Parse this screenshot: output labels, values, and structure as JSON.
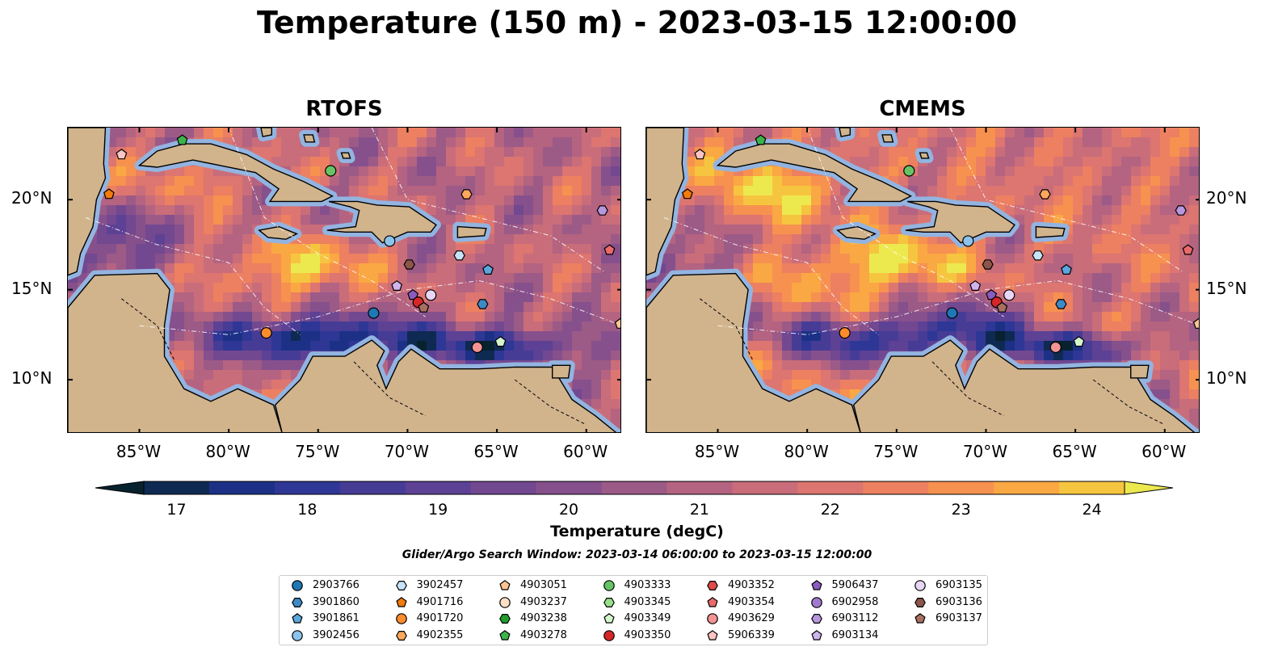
{
  "title": "Temperature (150 m) - 2023-03-15 12:00:00",
  "panels": [
    {
      "title": "RTOFS"
    },
    {
      "title": "CMEMS"
    }
  ],
  "map": {
    "lon_range": [
      -89,
      -58
    ],
    "lat_range": [
      7,
      24
    ],
    "lon_ticks": [
      {
        "label": "85°W",
        "lon": -85
      },
      {
        "label": "80°W",
        "lon": -80
      },
      {
        "label": "75°W",
        "lon": -75
      },
      {
        "label": "70°W",
        "lon": -70
      },
      {
        "label": "65°W",
        "lon": -65
      },
      {
        "label": "60°W",
        "lon": -60
      }
    ],
    "lat_ticks": [
      {
        "label": "20°N",
        "lat": 20
      },
      {
        "label": "15°N",
        "lat": 15
      },
      {
        "label": "10°N",
        "lat": 10
      }
    ],
    "colors": {
      "land": "#d1b48c",
      "shelf": "#93b4e0",
      "coast": "#000000"
    }
  },
  "colorbar": {
    "label": "Temperature (degC)",
    "range": [
      16.5,
      24.5
    ],
    "extend": "both",
    "ticks": [
      "17",
      "18",
      "19",
      "20",
      "21",
      "22",
      "23",
      "24"
    ],
    "colors": [
      "#07222e",
      "#0f2a52",
      "#1c3186",
      "#2e3796",
      "#463c96",
      "#5d4195",
      "#724890",
      "#86508c",
      "#9c5a87",
      "#b46381",
      "#c96d7a",
      "#dd7570",
      "#ec8060",
      "#f79150",
      "#faa843",
      "#f6c53f",
      "#ece94f"
    ]
  },
  "search_window": "Glider/Argo Search Window: 2023-03-14 06:00:00 to 2023-03-15 12:00:00",
  "legend": [
    {
      "id": "2903766",
      "marker": "circle",
      "color": "#1f77b4"
    },
    {
      "id": "3901860",
      "marker": "hexagon",
      "color": "#3d8ac7"
    },
    {
      "id": "3901861",
      "marker": "pentagon",
      "color": "#5aa6de"
    },
    {
      "id": "3902456",
      "marker": "circle",
      "color": "#8cc3ec"
    },
    {
      "id": "3902457",
      "marker": "hexagon",
      "color": "#c7e3f8"
    },
    {
      "id": "4901716",
      "marker": "pentagon",
      "color": "#f27b0c"
    },
    {
      "id": "4901720",
      "marker": "circle",
      "color": "#ff8c2c"
    },
    {
      "id": "4902355",
      "marker": "hexagon",
      "color": "#ffa75c"
    },
    {
      "id": "4903051",
      "marker": "pentagon",
      "color": "#ffc393"
    },
    {
      "id": "4903237",
      "marker": "circle",
      "color": "#ffe0c4"
    },
    {
      "id": "4903238",
      "marker": "hexagon",
      "color": "#1f9e2c"
    },
    {
      "id": "4903278",
      "marker": "pentagon",
      "color": "#3cb44b"
    },
    {
      "id": "4903333",
      "marker": "circle",
      "color": "#66c466"
    },
    {
      "id": "4903345",
      "marker": "hexagon",
      "color": "#98df8a"
    },
    {
      "id": "4903349",
      "marker": "pentagon",
      "color": "#d4f5cc"
    },
    {
      "id": "4903350",
      "marker": "circle",
      "color": "#d62728"
    },
    {
      "id": "4903352",
      "marker": "hexagon",
      "color": "#e04a4a"
    },
    {
      "id": "4903354",
      "marker": "pentagon",
      "color": "#ea6a6a"
    },
    {
      "id": "4903629",
      "marker": "circle",
      "color": "#f39393"
    },
    {
      "id": "5906339",
      "marker": "pentagon",
      "color": "#fcc4c4"
    },
    {
      "id": "5906437",
      "marker": "pentagon",
      "color": "#8a5cc0"
    },
    {
      "id": "6902958",
      "marker": "circle",
      "color": "#a07ad0"
    },
    {
      "id": "6903112",
      "marker": "hexagon",
      "color": "#b797de"
    },
    {
      "id": "6903134",
      "marker": "pentagon",
      "color": "#cfb5ec"
    },
    {
      "id": "6903135",
      "marker": "circle",
      "color": "#e7d6f6"
    },
    {
      "id": "6903136",
      "marker": "hexagon",
      "color": "#8c564b"
    },
    {
      "id": "6903137",
      "marker": "pentagon",
      "color": "#a87060"
    }
  ],
  "floats": [
    {
      "id": "4903278",
      "lon": -82.6,
      "lat": 23.3
    },
    {
      "id": "5906339",
      "lon": -86.0,
      "lat": 22.5
    },
    {
      "id": "4901716",
      "lon": -86.7,
      "lat": 20.3
    },
    {
      "id": "4903333",
      "lon": -74.3,
      "lat": 21.6
    },
    {
      "id": "4902355",
      "lon": -66.7,
      "lat": 20.3
    },
    {
      "id": "6903112",
      "lon": -59.1,
      "lat": 19.4
    },
    {
      "id": "4903354",
      "lon": -58.7,
      "lat": 17.2
    },
    {
      "id": "3902456",
      "lon": -71.0,
      "lat": 17.7
    },
    {
      "id": "3902457",
      "lon": -67.1,
      "lat": 16.9
    },
    {
      "id": "6903136",
      "lon": -69.9,
      "lat": 16.4
    },
    {
      "id": "3901861",
      "lon": -65.5,
      "lat": 16.1
    },
    {
      "id": "6903134",
      "lon": -70.6,
      "lat": 15.2
    },
    {
      "id": "5906437",
      "lon": -69.7,
      "lat": 14.7
    },
    {
      "id": "6903135",
      "lon": -68.7,
      "lat": 14.7
    },
    {
      "id": "4903350",
      "lon": -69.4,
      "lat": 14.3
    },
    {
      "id": "6903137",
      "lon": -69.1,
      "lat": 14.0
    },
    {
      "id": "3901860",
      "lon": -65.8,
      "lat": 14.2
    },
    {
      "id": "2903766",
      "lon": -71.9,
      "lat": 13.7
    },
    {
      "id": "4901720",
      "lon": -77.9,
      "lat": 12.6
    },
    {
      "id": "4903629",
      "lon": -66.1,
      "lat": 11.8
    },
    {
      "id": "4903349",
      "lon": -64.8,
      "lat": 12.1
    },
    {
      "id": "4903051",
      "lon": -58.1,
      "lat": 13.1
    }
  ],
  "land": [
    {
      "name": "central-america",
      "points": [
        [
          -89,
          14
        ],
        [
          -87.5,
          15.8
        ],
        [
          -84,
          15.9
        ],
        [
          -83.3,
          15
        ],
        [
          -83.6,
          13
        ],
        [
          -83.6,
          11.3
        ],
        [
          -82.5,
          9.5
        ],
        [
          -81,
          8.8
        ],
        [
          -79.5,
          9.5
        ],
        [
          -77.5,
          8.6
        ],
        [
          -77,
          7
        ],
        [
          -89,
          7
        ]
      ]
    },
    {
      "name": "yucatan",
      "points": [
        [
          -89,
          24
        ],
        [
          -86.9,
          24
        ],
        [
          -87,
          22
        ],
        [
          -86.9,
          21.2
        ],
        [
          -87.4,
          20
        ],
        [
          -87.6,
          18.5
        ],
        [
          -88.3,
          17
        ],
        [
          -88.5,
          16
        ],
        [
          -89,
          15.8
        ]
      ]
    },
    {
      "name": "south-america",
      "points": [
        [
          -77,
          7
        ],
        [
          -77.4,
          8.6
        ],
        [
          -76,
          10
        ],
        [
          -75.3,
          11.3
        ],
        [
          -73.5,
          11.3
        ],
        [
          -72,
          12.2
        ],
        [
          -71.3,
          11.6
        ],
        [
          -71.7,
          10.8
        ],
        [
          -71.2,
          9.5
        ],
        [
          -70.5,
          11
        ],
        [
          -69.8,
          11.7
        ],
        [
          -68.2,
          10.6
        ],
        [
          -66,
          10.6
        ],
        [
          -64,
          10.7
        ],
        [
          -61.9,
          10.7
        ],
        [
          -60.8,
          8.9
        ],
        [
          -59.5,
          8
        ],
        [
          -58,
          6.8
        ],
        [
          -58,
          7
        ]
      ]
    },
    {
      "name": "cuba",
      "points": [
        [
          -85,
          21.9
        ],
        [
          -84,
          22.7
        ],
        [
          -82.5,
          23.1
        ],
        [
          -81,
          23.1
        ],
        [
          -79,
          22.5
        ],
        [
          -77.5,
          21.7
        ],
        [
          -75.8,
          21
        ],
        [
          -74.2,
          20.2
        ],
        [
          -74.8,
          19.9
        ],
        [
          -77.7,
          19.9
        ],
        [
          -77.2,
          20.6
        ],
        [
          -78.5,
          21.5
        ],
        [
          -80.5,
          21.9
        ],
        [
          -82,
          22.2
        ],
        [
          -84,
          21.8
        ]
      ]
    },
    {
      "name": "hispaniola",
      "points": [
        [
          -74.4,
          19.9
        ],
        [
          -72.8,
          19.9
        ],
        [
          -71.7,
          19.7
        ],
        [
          -69.9,
          19.6
        ],
        [
          -68.4,
          18.6
        ],
        [
          -68.7,
          18.2
        ],
        [
          -70,
          18.2
        ],
        [
          -71.4,
          17.6
        ],
        [
          -72,
          18.2
        ],
        [
          -73.5,
          18.2
        ],
        [
          -74.5,
          18.3
        ],
        [
          -72.9,
          18.5
        ],
        [
          -72.7,
          19.4
        ],
        [
          -73.2,
          19.6
        ]
      ]
    },
    {
      "name": "jamaica",
      "points": [
        [
          -78.3,
          18.3
        ],
        [
          -77.2,
          18.5
        ],
        [
          -76.2,
          18.1
        ],
        [
          -76.8,
          17.8
        ],
        [
          -77.8,
          17.9
        ]
      ]
    },
    {
      "name": "puerto-rico",
      "points": [
        [
          -67.2,
          18.5
        ],
        [
          -65.6,
          18.4
        ],
        [
          -65.7,
          18
        ],
        [
          -67.2,
          17.9
        ]
      ]
    },
    {
      "name": "bahamas-andros",
      "points": [
        [
          -78.2,
          24
        ],
        [
          -77.6,
          24
        ],
        [
          -77.6,
          23.6
        ],
        [
          -78.1,
          23.5
        ]
      ]
    },
    {
      "name": "bahamas-1",
      "points": [
        [
          -75.8,
          23.6
        ],
        [
          -75.3,
          23.6
        ],
        [
          -75.2,
          23.2
        ],
        [
          -75.7,
          23.2
        ]
      ]
    },
    {
      "name": "bahamas-2",
      "points": [
        [
          -73.7,
          22.6
        ],
        [
          -73.3,
          22.6
        ],
        [
          -73.2,
          22.3
        ],
        [
          -73.6,
          22.3
        ]
      ]
    },
    {
      "name": "trinidad",
      "points": [
        [
          -61.9,
          10.8
        ],
        [
          -60.9,
          10.8
        ],
        [
          -61,
          10.1
        ],
        [
          -61.9,
          10.1
        ]
      ]
    }
  ]
}
